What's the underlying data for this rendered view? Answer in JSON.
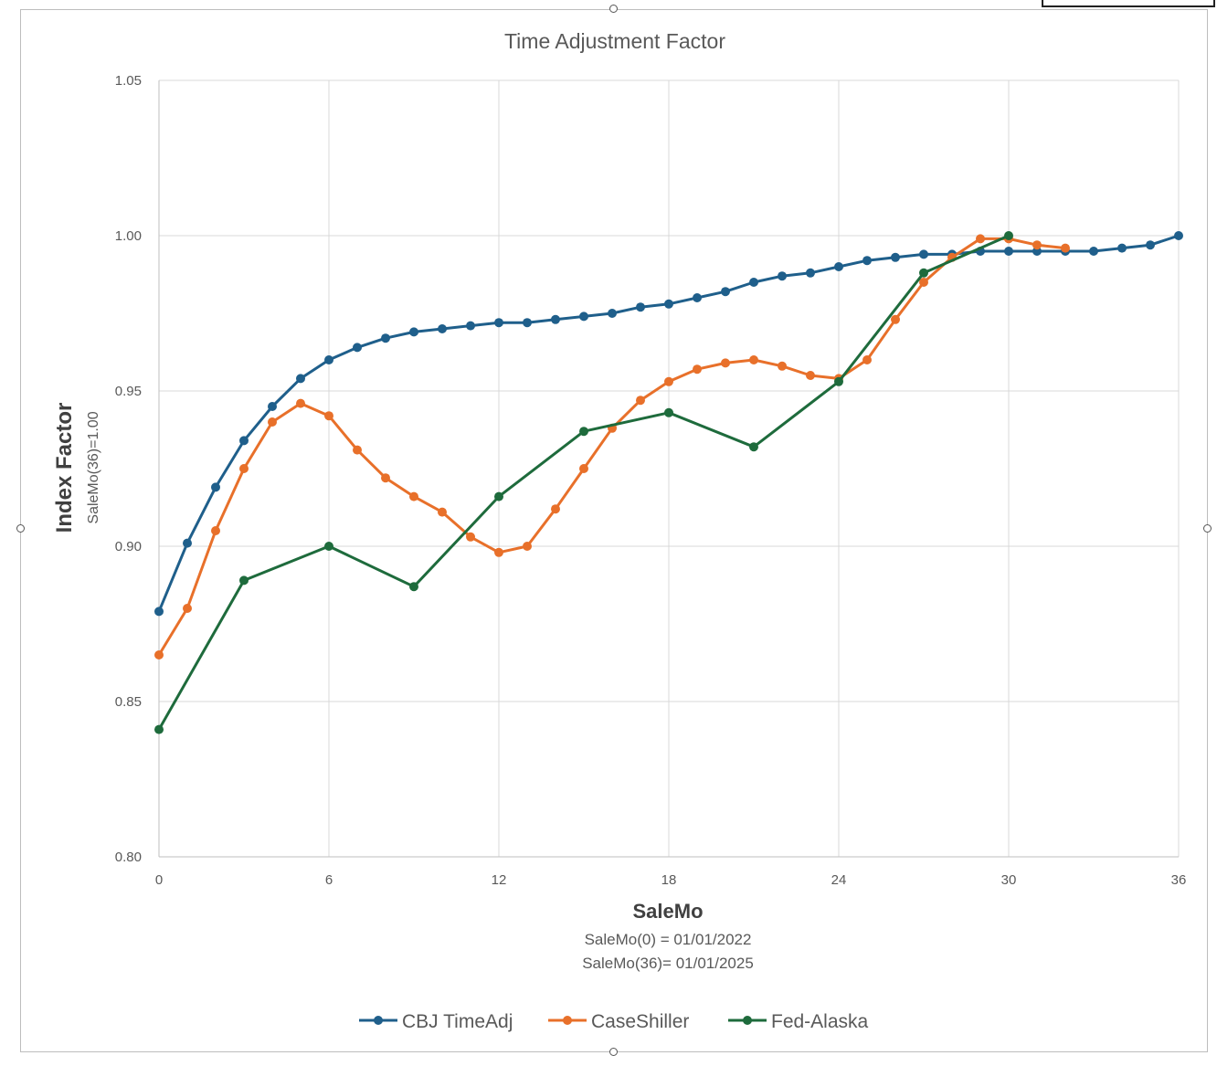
{
  "chart_data": {
    "type": "line",
    "title": "Time Adjustment Factor",
    "xlabel": "SaleMo",
    "xlabel_notes": [
      "SaleMo(0) = 01/01/2022",
      "SaleMo(36)= 01/01/2025"
    ],
    "ylabel": "Index Factor",
    "ylabel_sub": "SaleMo(36)=1.00",
    "xlim": [
      0,
      36
    ],
    "ylim": [
      0.8,
      1.05
    ],
    "xticks": [
      0,
      6,
      12,
      18,
      24,
      30,
      36
    ],
    "xtick_labels": [
      "0",
      "6",
      "12",
      "18",
      "24",
      "30",
      "36"
    ],
    "yticks": [
      0.8,
      0.85,
      0.9,
      0.95,
      1.0,
      1.05
    ],
    "ytick_labels": [
      "0.80",
      "0.85",
      "0.90",
      "0.95",
      "1.00",
      "1.05"
    ],
    "grid": true,
    "legend_position": "bottom",
    "series": [
      {
        "name": "CBJ TimeAdj",
        "color": "#1f5f8b",
        "x": [
          0,
          1,
          2,
          3,
          4,
          5,
          6,
          7,
          8,
          9,
          10,
          11,
          12,
          13,
          14,
          15,
          16,
          17,
          18,
          19,
          20,
          21,
          22,
          23,
          24,
          25,
          26,
          27,
          28,
          29,
          30,
          31,
          32,
          33,
          34,
          35,
          36
        ],
        "y": [
          0.879,
          0.901,
          0.919,
          0.934,
          0.945,
          0.954,
          0.96,
          0.964,
          0.967,
          0.969,
          0.97,
          0.971,
          0.972,
          0.972,
          0.973,
          0.974,
          0.975,
          0.977,
          0.978,
          0.98,
          0.982,
          0.985,
          0.987,
          0.988,
          0.99,
          0.992,
          0.993,
          0.994,
          0.994,
          0.995,
          0.995,
          0.995,
          0.995,
          0.995,
          0.996,
          0.997,
          1.0
        ]
      },
      {
        "name": "CaseShiller",
        "color": "#e8702a",
        "x": [
          0,
          1,
          2,
          3,
          4,
          5,
          6,
          7,
          8,
          9,
          10,
          11,
          12,
          13,
          14,
          15,
          16,
          17,
          18,
          19,
          20,
          21,
          22,
          23,
          24,
          25,
          26,
          27,
          28,
          29,
          30,
          31,
          32
        ],
        "y": [
          0.865,
          0.88,
          0.905,
          0.925,
          0.94,
          0.946,
          0.942,
          0.931,
          0.922,
          0.916,
          0.911,
          0.903,
          0.898,
          0.9,
          0.912,
          0.925,
          0.938,
          0.947,
          0.953,
          0.957,
          0.959,
          0.96,
          0.958,
          0.955,
          0.954,
          0.96,
          0.973,
          0.985,
          0.993,
          0.999,
          0.999,
          0.997,
          0.996
        ]
      },
      {
        "name": "Fed-Alaska",
        "color": "#1e6b3c",
        "x": [
          0,
          3,
          6,
          9,
          12,
          15,
          18,
          21,
          24,
          27,
          30
        ],
        "y": [
          0.841,
          0.889,
          0.9,
          0.887,
          0.916,
          0.937,
          0.943,
          0.932,
          0.953,
          0.988,
          1.0
        ]
      }
    ]
  }
}
